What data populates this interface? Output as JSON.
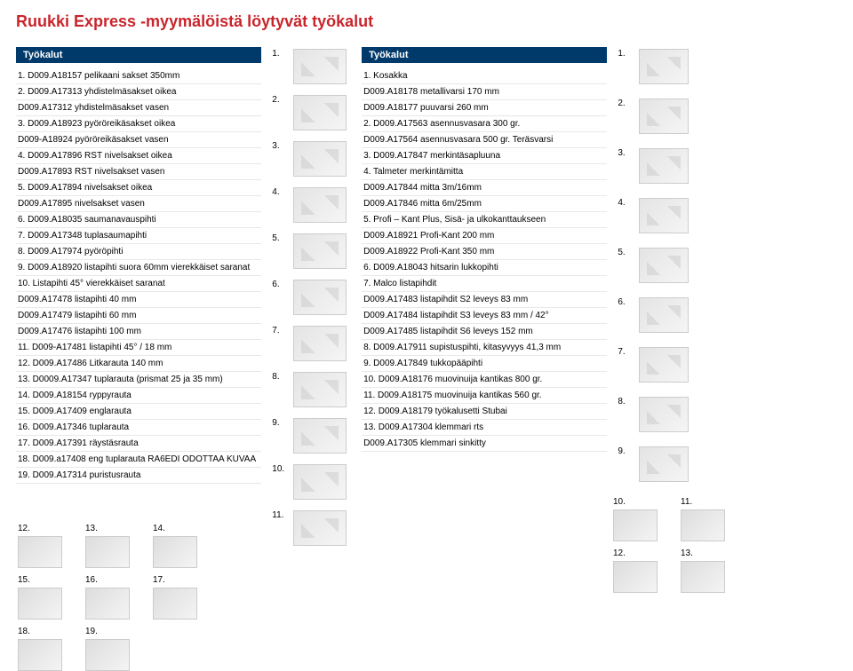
{
  "title": "Ruukki Express -myymälöistä löytyvät työkalut",
  "left": {
    "header": "Työkalut",
    "items": [
      "1.  D009.A18157 pelikaani sakset 350mm",
      "2.  D009.A17313 yhdistelmäsakset oikea",
      "    D009.A17312 yhdistelmäsakset vasen",
      "3.  D009.A18923 pyöröreikäsakset oikea",
      "    D009-A18924 pyöröreikäsakset vasen",
      "4.  D009.A17896 RST nivelsakset oikea",
      "    D009.A17893 RST nivelsakset vasen",
      "5.  D009.A17894 nivelsakset oikea",
      "    D009.A17895 nivelsakset vasen",
      "6.  D009.A18035 saumanavauspihti",
      "7.  D009.A17348 tuplasaumapihti",
      "8.  D009.A17974 pyöröpihti",
      "9.  D009.A18920 listapihti suora 60mm vierekkäiset saranat",
      "10. Listapihti 45° vierekkäiset saranat",
      "    D009.A17478 listapihti 40 mm",
      "    D009.A17479 listapihti 60 mm",
      "    D009.A17476 listapihti 100 mm",
      "11. D009-A17481 listapihti 45° / 18 mm",
      "12. D009.A17486 Litkarauta 140 mm",
      "13. D0009.A17347 tuplarauta (prismat 25 ja 35 mm)",
      "14. D009.A18154 ryppyrauta",
      "15. D009.A17409 englarauta",
      "16. D009.A17346 tuplarauta",
      "17. D009.A17391 räystäsrauta",
      "18. D009.a17408 eng tuplarauta RA6EDI ODOTTAA KUVAA",
      "19. D009.A17314 puristusrauta"
    ]
  },
  "mid_nums": [
    "1.",
    "2.",
    "3.",
    "4.",
    "5.",
    "6.",
    "7.",
    "8.",
    "9.",
    "10.",
    "11."
  ],
  "right": {
    "header": "Työkalut",
    "items": [
      "1.  Kosakka",
      "    D009.A18178 metallivarsi 170 mm",
      "    D009.A18177 puuvarsi 260 mm",
      "2.  D009.A17563 asennusvasara 300 gr.",
      "    D009.A17564 asennusvasara 500 gr. Teräsvarsi",
      "3.  D009.A17847 merkintäsapluuna",
      "4.  Talmeter merkintämitta",
      "    D009.A17844 mitta 3m/16mm",
      "    D009.A17846 mitta 6m/25mm",
      "5.  Profi – Kant Plus, Sisä- ja ulkokanttaukseen",
      "    D009.A18921 Profi-Kant 200 mm",
      "    D009.A18922 Profi-Kant 350 mm",
      "6.  D009.A18043 hitsarin lukkopihti",
      "7.  Malco listapihdit",
      "    D009.A17483 listapihdit S2 leveys 83 mm",
      "    D009.A17484 listapihdit S3 leveys 83 mm / 42°",
      "    D009.A17485 listapihdit S6 leveys 152 mm",
      "8.  D009.A17911 supistuspihti, kitasyvyys 41,3 mm",
      "9.  D009.A17849 tukkopääpihti",
      "10. D009.A18176 muovinuija kantikas 800 gr.",
      "11. D009.A18175 muovinuija kantikas 560 gr.",
      "12. D009.A18179 työkalusetti Stubai",
      "13. D009.A17304 klemmari rts",
      "    D009.A17305 klemmari sinkitty"
    ]
  },
  "rthumbs": [
    "1.",
    "2.",
    "3.",
    "4.",
    "5.",
    "6.",
    "7.",
    "8.",
    "9."
  ],
  "bottom_left": [
    "12.",
    "13.",
    "14.",
    "15.",
    "16.",
    "17.",
    "18.",
    "19."
  ],
  "bottom_right": [
    "10.",
    "11.",
    "12.",
    "13."
  ]
}
